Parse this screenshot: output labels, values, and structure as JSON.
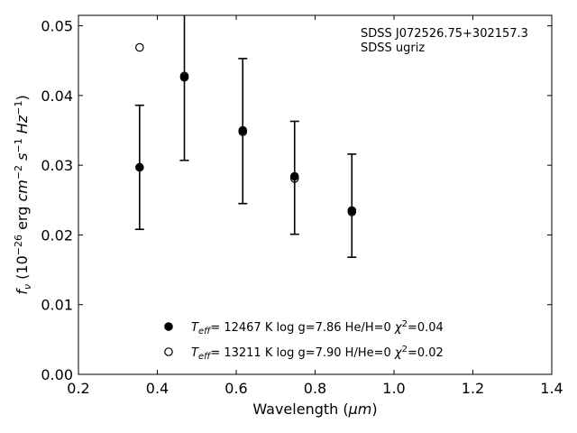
{
  "chart_data": {
    "type": "scatter",
    "xlabel": "Wavelength (μm)",
    "ylabel": "f_ν (10^-26 erg cm^-2 s^-1 Hz^-1)",
    "xlim": [
      0.2,
      1.4
    ],
    "ylim": [
      0.0,
      0.0515
    ],
    "xticks": [
      "0.2",
      "0.4",
      "0.6",
      "0.8",
      "1.0",
      "1.2",
      "1.4"
    ],
    "yticks": [
      "0.00",
      "0.01",
      "0.02",
      "0.03",
      "0.04",
      "0.05"
    ],
    "annotation": [
      "SDSS J072526.75+302157.3",
      "SDSS ugriz"
    ],
    "legend_position": "lower-center",
    "observed": {
      "x": [
        0.3551,
        0.4686,
        0.6166,
        0.748,
        0.8932
      ],
      "y": [
        0.0297,
        0.043,
        0.0349,
        0.0282,
        0.0242
      ],
      "err": [
        0.0089,
        0.0123,
        0.0104,
        0.0081,
        0.0074
      ]
    },
    "series": [
      {
        "name": "T_eff= 12467 K  log g=7.86  He/H=0  χ²=0.04",
        "marker": "filled-circle",
        "x": [
          0.3551,
          0.4686,
          0.6166,
          0.748,
          0.8932
        ],
        "y": [
          0.0297,
          0.0426,
          0.035,
          0.0284,
          0.0235
        ]
      },
      {
        "name": "T_eff= 13211 K  log g=7.90  H/He=0  χ²=0.02",
        "marker": "open-circle",
        "x": [
          0.3551,
          0.4686,
          0.6166,
          0.748,
          0.8932
        ],
        "y": [
          0.0469,
          0.0428,
          0.0348,
          0.0281,
          0.0233
        ]
      }
    ]
  }
}
